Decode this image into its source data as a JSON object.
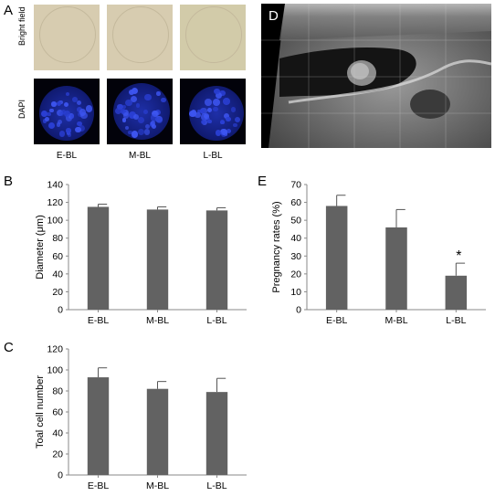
{
  "panels": {
    "a": "A",
    "b": "B",
    "c": "C",
    "d": "D",
    "e": "E"
  },
  "panel_a": {
    "row_labels": [
      "Bright field",
      "DAPI"
    ],
    "col_labels": [
      "E-BL",
      "M-BL",
      "L-BL"
    ]
  },
  "colors": {
    "bar": "#626262",
    "bright_field": "#d7ccb0",
    "dapi_blue": "#2a3fd4"
  },
  "chart_data": [
    {
      "panel": "B",
      "type": "bar",
      "categories": [
        "E-BL",
        "M-BL",
        "L-BL"
      ],
      "values": [
        115,
        112,
        111
      ],
      "errors": [
        3,
        3,
        3
      ],
      "ylabel": "Diameter (μm)",
      "ylim": [
        0,
        140
      ],
      "yticks": [
        0,
        20,
        40,
        60,
        80,
        100,
        120,
        140
      ],
      "annotations": []
    },
    {
      "panel": "C",
      "type": "bar",
      "categories": [
        "E-BL",
        "M-BL",
        "L-BL"
      ],
      "values": [
        93,
        82,
        79
      ],
      "errors": [
        9,
        7,
        13
      ],
      "ylabel": "Toal cell number",
      "ylim": [
        0,
        120
      ],
      "yticks": [
        0,
        20,
        40,
        60,
        80,
        100,
        120
      ],
      "annotations": []
    },
    {
      "panel": "E",
      "type": "bar",
      "categories": [
        "E-BL",
        "M-BL",
        "L-BL"
      ],
      "values": [
        58,
        46,
        19
      ],
      "errors": [
        6,
        10,
        7
      ],
      "ylabel": "Pregnancy rates (%)",
      "ylim": [
        0,
        70
      ],
      "yticks": [
        0,
        10,
        20,
        30,
        40,
        50,
        60,
        70
      ],
      "annotations": [
        {
          "category": "L-BL",
          "text": "*"
        }
      ]
    }
  ]
}
